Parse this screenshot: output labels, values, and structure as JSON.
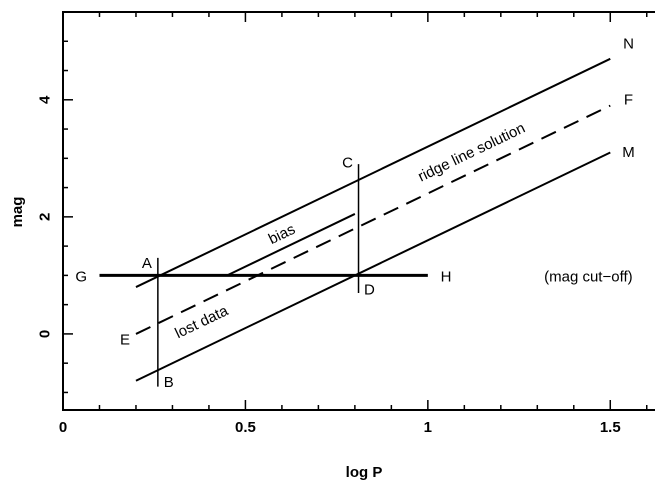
{
  "chart_data": {
    "type": "diagram-plot",
    "xlabel": "log P",
    "ylabel": "mag",
    "xlim": [
      0,
      1.65
    ],
    "ylim": [
      -1.3,
      5.5
    ],
    "x_ticks": [
      {
        "value": 0,
        "label": "0"
      },
      {
        "value": 0.5,
        "label": "0.5"
      },
      {
        "value": 1,
        "label": "1"
      },
      {
        "value": 1.5,
        "label": "1.5"
      }
    ],
    "y_ticks": [
      {
        "value": 0,
        "label": "0"
      },
      {
        "value": 2,
        "label": "2"
      },
      {
        "value": 4,
        "label": "4"
      }
    ],
    "x_minor_step": 0.1,
    "y_minor_step": 0.5,
    "lines": [
      {
        "id": "line-N",
        "from": [
          0.2,
          0.8
        ],
        "to": [
          1.5,
          4.7
        ],
        "style": "solid",
        "width": 2
      },
      {
        "id": "line-F",
        "from": [
          0.2,
          0.0
        ],
        "to": [
          1.5,
          3.9
        ],
        "style": "dashed",
        "width": 2
      },
      {
        "id": "line-M",
        "from": [
          0.2,
          -0.8
        ],
        "to": [
          1.5,
          3.1
        ],
        "style": "solid",
        "width": 2
      },
      {
        "id": "line-bias",
        "from": [
          0.45,
          1.0
        ],
        "to": [
          0.8,
          2.05
        ],
        "style": "solid",
        "width": 2
      },
      {
        "id": "line-GH",
        "from": [
          0.1,
          1.0
        ],
        "to": [
          1.0,
          1.0
        ],
        "style": "solid",
        "width": 3
      },
      {
        "id": "line-AB",
        "from": [
          0.26,
          1.3
        ],
        "to": [
          0.26,
          -0.9
        ],
        "style": "solid",
        "width": 1.5
      },
      {
        "id": "line-CD",
        "from": [
          0.81,
          2.9
        ],
        "to": [
          0.81,
          0.7
        ],
        "style": "solid",
        "width": 1.5
      }
    ],
    "labels": [
      {
        "id": "A",
        "text": "A",
        "x": 0.23,
        "y": 1.2
      },
      {
        "id": "B",
        "text": "B",
        "x": 0.29,
        "y": -0.83
      },
      {
        "id": "C",
        "text": "C",
        "x": 0.78,
        "y": 2.92
      },
      {
        "id": "D",
        "text": "D",
        "x": 0.84,
        "y": 0.75
      },
      {
        "id": "E",
        "text": "E",
        "x": 0.17,
        "y": -0.1
      },
      {
        "id": "F",
        "text": "F",
        "x": 1.55,
        "y": 4.0
      },
      {
        "id": "G",
        "text": "G",
        "x": 0.05,
        "y": 0.97
      },
      {
        "id": "H",
        "text": "H",
        "x": 1.05,
        "y": 0.97
      },
      {
        "id": "M",
        "text": "M",
        "x": 1.55,
        "y": 3.1
      },
      {
        "id": "N",
        "text": "N",
        "x": 1.55,
        "y": 4.95
      },
      {
        "id": "cutoff",
        "text": "(mag cut−off)",
        "x": 1.44,
        "y": 0.97
      },
      {
        "id": "bias",
        "text": "bias",
        "x": 0.6,
        "y": 1.7,
        "angle_slope": 3.0
      },
      {
        "id": "ridge",
        "text": "ridge line solution",
        "x": 1.12,
        "y": 3.1,
        "angle_slope": 3.0
      },
      {
        "id": "lost",
        "text": "lost data",
        "x": 0.38,
        "y": 0.2,
        "angle_slope": 3.0
      }
    ]
  }
}
